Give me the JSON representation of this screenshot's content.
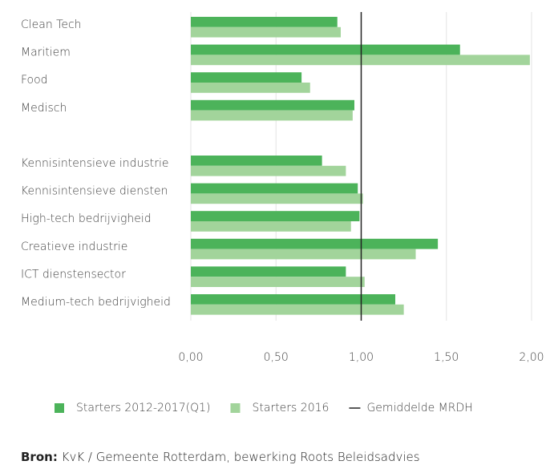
{
  "chart_data": {
    "type": "bar",
    "orientation": "horizontal",
    "categories": [
      "Clean Tech",
      "Maritiem",
      "Food",
      "Medisch",
      null,
      "Kennisintensieve industrie",
      "Kennisintensieve diensten",
      "High-tech bedrijvigheid",
      "Creatieve industrie",
      "ICT dienstensector",
      "Medium-tech bedrijvigheid"
    ],
    "series": [
      {
        "name": "Starters 2012-2017(Q1)",
        "color": "#4cb35a",
        "values": [
          0.86,
          1.58,
          0.65,
          0.96,
          null,
          0.77,
          0.98,
          0.99,
          1.45,
          0.91,
          1.2
        ]
      },
      {
        "name": "Starters 2016",
        "color": "#a2d49b",
        "values": [
          0.88,
          1.99,
          0.7,
          0.95,
          null,
          0.91,
          1.01,
          0.94,
          1.32,
          1.02,
          1.25
        ]
      }
    ],
    "xlim": [
      0,
      2
    ],
    "xticks": [
      {
        "value": 0,
        "label": "0,00"
      },
      {
        "value": 0.5,
        "label": "0,50"
      },
      {
        "value": 1,
        "label": "1,00"
      },
      {
        "value": 1.5,
        "label": "1,50"
      },
      {
        "value": 2,
        "label": "2,00"
      }
    ],
    "grid": true,
    "reference_line": {
      "name": "Gemiddelde MRDH",
      "value": 1,
      "color": "#222"
    },
    "source": {
      "label": "Bron:",
      "text": "KvK / Gemeente Rotterdam, bewerking Roots Beleidsadvies"
    }
  }
}
